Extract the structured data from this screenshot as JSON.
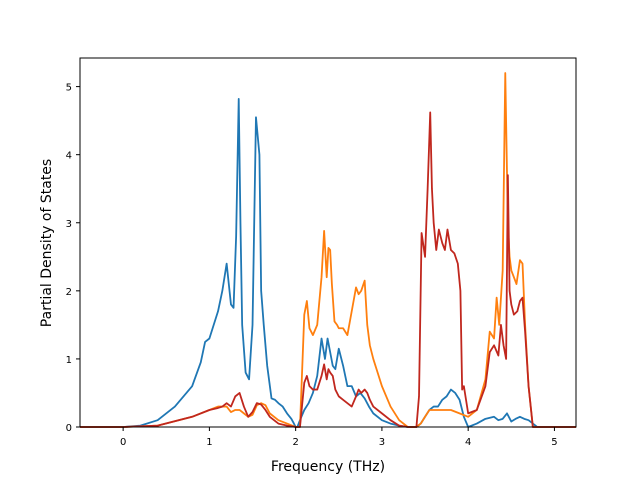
{
  "chart_data": {
    "type": "line",
    "title": "",
    "xlabel": "Frequency (THz)",
    "ylabel": "Partial Density of States",
    "xlim": [
      -0.5,
      5.25
    ],
    "ylim": [
      0,
      5.42
    ],
    "grid": false,
    "legend": "none",
    "xticks": [
      0,
      1,
      2,
      3,
      4,
      5
    ],
    "yticks": [
      0,
      1,
      2,
      3,
      4,
      5
    ],
    "series": [
      {
        "color": "#1f77b4",
        "x": [
          -0.5,
          0.0,
          0.2,
          0.4,
          0.6,
          0.8,
          0.9,
          0.95,
          1.0,
          1.05,
          1.1,
          1.15,
          1.2,
          1.25,
          1.28,
          1.31,
          1.34,
          1.36,
          1.38,
          1.42,
          1.46,
          1.5,
          1.54,
          1.58,
          1.6,
          1.63,
          1.67,
          1.72,
          1.76,
          1.8,
          1.85,
          1.9,
          1.95,
          1.98,
          2.0,
          2.02,
          2.05,
          2.1,
          2.15,
          2.2,
          2.25,
          2.3,
          2.34,
          2.37,
          2.4,
          2.43,
          2.46,
          2.5,
          2.55,
          2.6,
          2.65,
          2.7,
          2.75,
          2.8,
          2.85,
          2.9,
          3.0,
          3.1,
          3.2,
          3.3,
          3.4,
          3.45,
          3.5,
          3.55,
          3.6,
          3.65,
          3.7,
          3.75,
          3.8,
          3.85,
          3.9,
          3.95,
          4.0,
          4.1,
          4.2,
          4.3,
          4.35,
          4.4,
          4.45,
          4.5,
          4.55,
          4.6,
          4.65,
          4.7,
          4.75,
          4.8,
          5.0,
          5.25
        ],
        "y": [
          0,
          0.0,
          0.02,
          0.1,
          0.3,
          0.6,
          0.95,
          1.25,
          1.3,
          1.5,
          1.7,
          2.0,
          2.4,
          1.8,
          1.75,
          2.8,
          4.82,
          3.0,
          1.5,
          0.8,
          0.7,
          1.5,
          4.55,
          4.0,
          2.0,
          1.5,
          0.9,
          0.42,
          0.4,
          0.35,
          0.3,
          0.2,
          0.12,
          0.05,
          0.0,
          0.0,
          0.1,
          0.25,
          0.35,
          0.5,
          0.75,
          1.3,
          1.0,
          1.3,
          1.1,
          0.9,
          0.85,
          1.15,
          0.9,
          0.6,
          0.6,
          0.45,
          0.5,
          0.42,
          0.3,
          0.2,
          0.1,
          0.05,
          0.02,
          0.0,
          0.0,
          0.05,
          0.15,
          0.25,
          0.3,
          0.3,
          0.4,
          0.45,
          0.55,
          0.5,
          0.4,
          0.15,
          0.0,
          0.05,
          0.12,
          0.15,
          0.1,
          0.12,
          0.2,
          0.08,
          0.12,
          0.15,
          0.12,
          0.1,
          0.05,
          0.0,
          0.0,
          0.0
        ]
      },
      {
        "color": "#ff7f0e",
        "x": [
          -0.5,
          0.0,
          0.4,
          0.8,
          1.0,
          1.1,
          1.2,
          1.25,
          1.3,
          1.35,
          1.4,
          1.45,
          1.5,
          1.55,
          1.6,
          1.65,
          1.7,
          1.8,
          1.9,
          2.0,
          2.05,
          2.1,
          2.13,
          2.16,
          2.2,
          2.25,
          2.3,
          2.33,
          2.36,
          2.38,
          2.4,
          2.42,
          2.45,
          2.48,
          2.5,
          2.55,
          2.6,
          2.65,
          2.7,
          2.73,
          2.76,
          2.8,
          2.83,
          2.86,
          2.9,
          2.95,
          3.0,
          3.1,
          3.2,
          3.3,
          3.4,
          3.45,
          3.5,
          3.55,
          3.6,
          3.7,
          3.8,
          3.9,
          4.0,
          4.1,
          4.2,
          4.25,
          4.3,
          4.33,
          4.36,
          4.4,
          4.43,
          4.46,
          4.48,
          4.5,
          4.53,
          4.56,
          4.6,
          4.63,
          4.66,
          4.7,
          4.75,
          4.8,
          5.0,
          5.25
        ],
        "y": [
          0,
          0,
          0.02,
          0.15,
          0.25,
          0.3,
          0.3,
          0.22,
          0.25,
          0.25,
          0.2,
          0.15,
          0.18,
          0.32,
          0.35,
          0.32,
          0.2,
          0.1,
          0.05,
          0.0,
          0.0,
          1.65,
          1.85,
          1.45,
          1.35,
          1.5,
          2.2,
          2.88,
          2.2,
          2.63,
          2.6,
          2.1,
          1.55,
          1.5,
          1.45,
          1.45,
          1.35,
          1.7,
          2.05,
          1.95,
          2.0,
          2.15,
          1.5,
          1.2,
          1.0,
          0.8,
          0.6,
          0.3,
          0.1,
          0.0,
          0.0,
          0.05,
          0.15,
          0.25,
          0.25,
          0.25,
          0.25,
          0.2,
          0.15,
          0.25,
          0.7,
          1.4,
          1.3,
          1.9,
          1.5,
          2.3,
          5.2,
          3.0,
          2.5,
          2.3,
          2.2,
          2.1,
          2.45,
          2.4,
          1.5,
          0.6,
          0.0,
          0.0,
          0.0,
          0.0
        ]
      },
      {
        "color": "#c0271e",
        "x": [
          -0.5,
          0.0,
          0.4,
          0.8,
          1.0,
          1.1,
          1.15,
          1.2,
          1.25,
          1.3,
          1.35,
          1.4,
          1.45,
          1.5,
          1.55,
          1.6,
          1.65,
          1.7,
          1.8,
          1.9,
          2.0,
          2.05,
          2.1,
          2.13,
          2.16,
          2.2,
          2.25,
          2.3,
          2.33,
          2.36,
          2.38,
          2.4,
          2.43,
          2.46,
          2.5,
          2.55,
          2.6,
          2.65,
          2.7,
          2.73,
          2.76,
          2.8,
          2.83,
          2.86,
          2.9,
          3.0,
          3.1,
          3.2,
          3.3,
          3.4,
          3.43,
          3.46,
          3.5,
          3.53,
          3.56,
          3.58,
          3.6,
          3.63,
          3.66,
          3.7,
          3.73,
          3.76,
          3.8,
          3.84,
          3.88,
          3.91,
          3.93,
          3.95,
          4.0,
          4.1,
          4.2,
          4.25,
          4.3,
          4.35,
          4.38,
          4.41,
          4.44,
          4.46,
          4.48,
          4.5,
          4.53,
          4.57,
          4.6,
          4.63,
          4.66,
          4.7,
          4.75,
          4.8,
          5.0,
          5.25
        ],
        "y": [
          0,
          0,
          0.02,
          0.15,
          0.25,
          0.28,
          0.3,
          0.35,
          0.3,
          0.45,
          0.5,
          0.3,
          0.15,
          0.22,
          0.35,
          0.33,
          0.25,
          0.15,
          0.05,
          0.02,
          0.0,
          0.0,
          0.65,
          0.75,
          0.6,
          0.55,
          0.55,
          0.75,
          0.92,
          0.7,
          0.85,
          0.8,
          0.75,
          0.55,
          0.45,
          0.4,
          0.35,
          0.3,
          0.45,
          0.55,
          0.5,
          0.55,
          0.5,
          0.4,
          0.3,
          0.2,
          0.1,
          0.02,
          0.0,
          0.0,
          0.45,
          2.85,
          2.5,
          3.5,
          4.62,
          3.5,
          3.0,
          2.6,
          2.9,
          2.7,
          2.6,
          2.9,
          2.6,
          2.55,
          2.4,
          2.0,
          0.55,
          0.6,
          0.2,
          0.25,
          0.6,
          1.1,
          1.2,
          1.05,
          1.5,
          1.2,
          1.0,
          3.7,
          2.0,
          1.8,
          1.65,
          1.7,
          1.85,
          1.9,
          1.4,
          0.6,
          0.0,
          0.0,
          0.0,
          0.0
        ]
      }
    ]
  }
}
